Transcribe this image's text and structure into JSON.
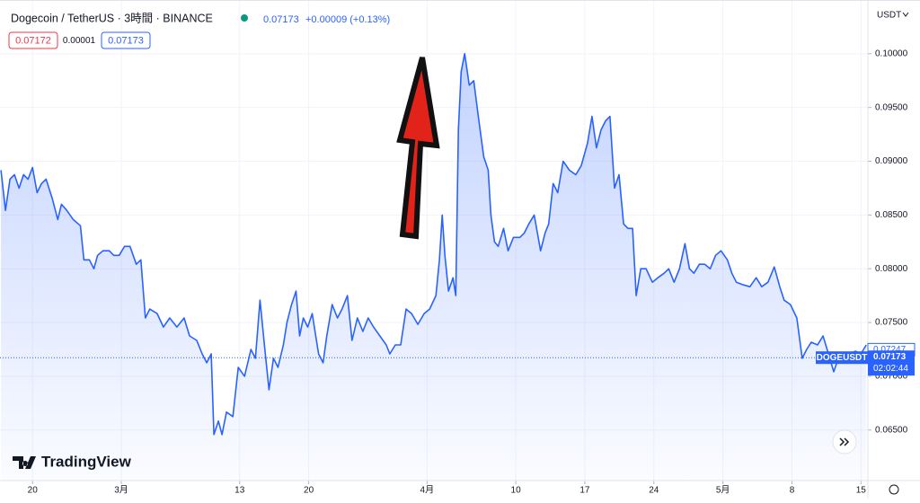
{
  "chart_data": {
    "type": "line",
    "title": "Dogecoin / TetherUS · 3時間 · BINANCE",
    "last_price": 0.07173,
    "change": "+0.00009 (+0.13%)",
    "bid": 0.07172,
    "spread": 1e-05,
    "ask": 0.07173,
    "currency": "USDT",
    "symbol": "DOGEUSDT",
    "countdown": "02:02:44",
    "marker_price": 0.07247,
    "brand": "TradingView",
    "color": "#2962ff",
    "grid": true,
    "xlim": [
      -3.3,
      84.7
    ],
    "ylim": [
      0.0603,
      0.105
    ],
    "xticks": [
      {
        "value": 0,
        "label": "20"
      },
      {
        "value": 9,
        "label": "3月"
      },
      {
        "value": 21,
        "label": "13"
      },
      {
        "value": 28,
        "label": "20"
      },
      {
        "value": 40,
        "label": "4月"
      },
      {
        "value": 49,
        "label": "10"
      },
      {
        "value": 56,
        "label": "17"
      },
      {
        "value": 63,
        "label": "24"
      },
      {
        "value": 70,
        "label": "5月"
      },
      {
        "value": 77,
        "label": "8"
      },
      {
        "value": 84,
        "label": "15"
      }
    ],
    "yticks": [
      {
        "value": 0.065,
        "label": "0.06500"
      },
      {
        "value": 0.07,
        "label": "0.07000"
      },
      {
        "value": 0.075,
        "label": "0.07500"
      },
      {
        "value": 0.08,
        "label": "0.08000"
      },
      {
        "value": 0.085,
        "label": "0.08500"
      },
      {
        "value": 0.09,
        "label": "0.09000"
      },
      {
        "value": 0.095,
        "label": "0.09500"
      },
      {
        "value": 0.1,
        "label": "0.10000"
      }
    ],
    "x": [
      -3.2,
      -2.74,
      -2.29,
      -1.83,
      -1.37,
      -0.91,
      -0.46,
      0,
      0.46,
      0.91,
      1.37,
      2.01,
      2.56,
      2.93,
      3.48,
      4.12,
      4.85,
      5.21,
      5.76,
      6.22,
      6.59,
      7.14,
      7.78,
      8.23,
      8.78,
      9.33,
      9.88,
      10.52,
      10.98,
      11.44,
      11.89,
      12.63,
      13.27,
      13.91,
      14.64,
      15.37,
      15.92,
      16.65,
      17.2,
      17.66,
      18.12,
      18.39,
      18.85,
      19.21,
      19.67,
      20.31,
      20.86,
      21.5,
      22.14,
      22.6,
      23.06,
      23.51,
      23.97,
      24.43,
      24.89,
      25.43,
      25.8,
      26.26,
      26.72,
      27.08,
      27.45,
      27.9,
      28.36,
      29,
      29.46,
      29.83,
      30.38,
      30.92,
      31.38,
      31.93,
      32.39,
      32.94,
      33.49,
      34.03,
      34.58,
      35.22,
      35.86,
      36.23,
      36.78,
      37.33,
      37.88,
      38.43,
      39.07,
      39.71,
      40.26,
      40.9,
      41.26,
      41.54,
      41.81,
      42.18,
      42.63,
      42.91,
      43.18,
      43.46,
      43.82,
      44.28,
      44.74,
      45.2,
      45.75,
      46.2,
      46.48,
      46.84,
      47.21,
      47.76,
      48.22,
      48.76,
      49.41,
      49.86,
      50.32,
      50.87,
      51.51,
      51.97,
      52.33,
      52.79,
      53.25,
      53.8,
      54.44,
      55.08,
      55.63,
      56.27,
      56.72,
      57.18,
      57.64,
      58.1,
      58.55,
      59.01,
      59.47,
      59.93,
      60.38,
      60.84,
      61.21,
      61.67,
      62.21,
      62.85,
      63.4,
      64.04,
      64.5,
      65.05,
      65.6,
      66.15,
      66.61,
      67.06,
      67.61,
      68.16,
      68.71,
      69.26,
      69.81,
      70.45,
      70.91,
      71.36,
      72.09,
      72.74,
      73.38,
      73.93,
      74.57,
      75.21,
      75.76,
      76.21,
      76.85,
      77.49,
      78.04,
      78.5,
      78.96,
      79.6,
      80.15,
      80.7,
      81.24,
      81.7,
      82.16,
      82.8,
      83.44,
      83.99,
      84.54
    ],
    "series": [
      {
        "name": "DOGEUSDT",
        "color": "#2962ff",
        "values": [
          0.08917,
          0.08542,
          0.08833,
          0.08875,
          0.0875,
          0.08875,
          0.08833,
          0.08942,
          0.08708,
          0.08792,
          0.08833,
          0.0865,
          0.08458,
          0.086,
          0.08542,
          0.08458,
          0.084,
          0.08083,
          0.08083,
          0.08,
          0.08125,
          0.08167,
          0.08167,
          0.08125,
          0.08125,
          0.08208,
          0.08208,
          0.08042,
          0.08083,
          0.07542,
          0.07625,
          0.07583,
          0.07458,
          0.07542,
          0.07458,
          0.07542,
          0.07375,
          0.07333,
          0.07208,
          0.07125,
          0.07208,
          0.06458,
          0.06583,
          0.06458,
          0.06667,
          0.06625,
          0.07083,
          0.07,
          0.0725,
          0.07167,
          0.07708,
          0.07292,
          0.06875,
          0.07167,
          0.07083,
          0.07292,
          0.075,
          0.07667,
          0.07792,
          0.07375,
          0.07542,
          0.07458,
          0.07583,
          0.07208,
          0.07125,
          0.07375,
          0.07667,
          0.07542,
          0.07625,
          0.0775,
          0.07333,
          0.07542,
          0.07417,
          0.07542,
          0.07458,
          0.07375,
          0.07292,
          0.07208,
          0.07292,
          0.07292,
          0.07625,
          0.07583,
          0.07483,
          0.07583,
          0.07625,
          0.0775,
          0.08083,
          0.085,
          0.08125,
          0.07792,
          0.07917,
          0.0775,
          0.09292,
          0.09833,
          0.1,
          0.09708,
          0.0975,
          0.09417,
          0.09042,
          0.08917,
          0.085,
          0.0825,
          0.08208,
          0.08375,
          0.08167,
          0.08292,
          0.08292,
          0.08333,
          0.08417,
          0.085,
          0.08167,
          0.08333,
          0.08417,
          0.08792,
          0.08708,
          0.09,
          0.08917,
          0.08875,
          0.08958,
          0.09167,
          0.09417,
          0.09125,
          0.09292,
          0.09375,
          0.09417,
          0.0875,
          0.08875,
          0.08417,
          0.08375,
          0.08375,
          0.0775,
          0.08,
          0.08,
          0.07875,
          0.07917,
          0.07958,
          0.08,
          0.07875,
          0.08,
          0.08233,
          0.08,
          0.07958,
          0.08042,
          0.08042,
          0.08,
          0.08125,
          0.08167,
          0.08083,
          0.07958,
          0.07875,
          0.0785,
          0.07833,
          0.07917,
          0.07833,
          0.07875,
          0.08017,
          0.07833,
          0.07708,
          0.07667,
          0.07542,
          0.07167,
          0.0725,
          0.07317,
          0.07292,
          0.07375,
          0.07208,
          0.07042,
          0.07167,
          0.07208,
          0.07208,
          0.07233,
          0.07208,
          0.07292
        ]
      }
    ]
  }
}
